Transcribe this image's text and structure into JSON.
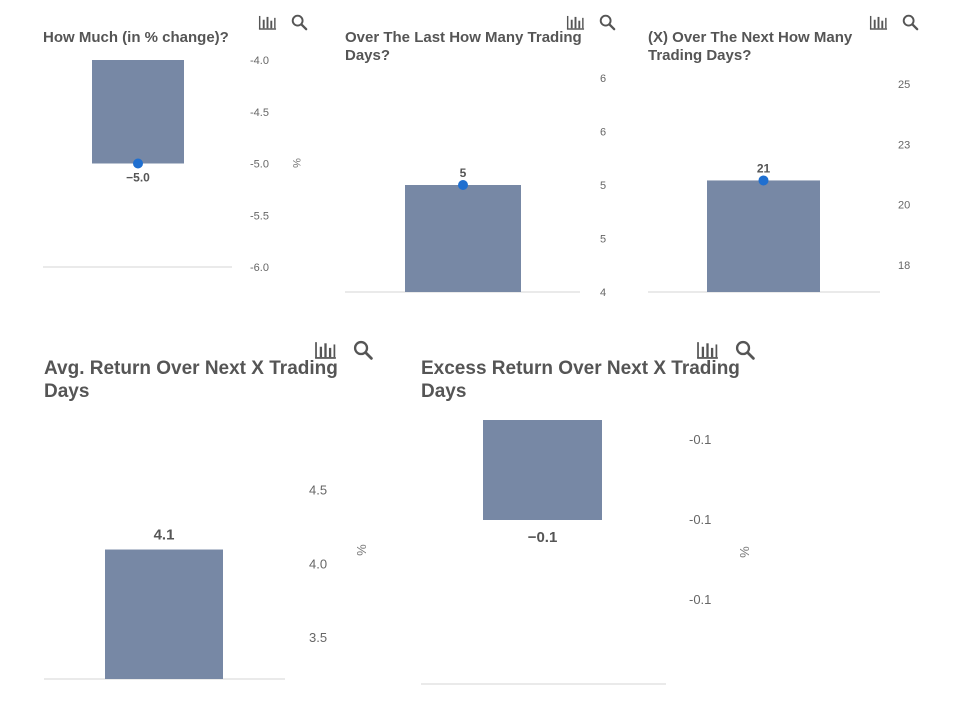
{
  "colors": {
    "bar": "#7788a5",
    "marker": "#1f6fd0",
    "axis": "#dddddd",
    "icon": "#555555"
  },
  "icons": [
    "bar-chart-icon",
    "search-icon"
  ],
  "chart_data": [
    {
      "type": "bar",
      "title": "How Much (in % change)?",
      "categories": [
        ""
      ],
      "values": [
        -5.0
      ],
      "value_label": "−5.0",
      "marker": true,
      "unit": "%",
      "yticks": [
        -4.0,
        -4.5,
        -5.0,
        -5.5,
        -6.0
      ],
      "ytick_labels": [
        "-4.0",
        "-4.5",
        "-5.0",
        "-5.5",
        "-6.0"
      ],
      "ylim": [
        -6.0,
        -4.0
      ],
      "bar_base": -4.0
    },
    {
      "type": "bar",
      "title": "Over The Last How Many Trading Days?",
      "categories": [
        ""
      ],
      "values": [
        5
      ],
      "value_label": "5",
      "marker": true,
      "yticks": [
        6.0,
        5.5,
        5.0,
        4.5,
        4.0
      ],
      "ytick_labels": [
        "6",
        "6",
        "5",
        "5",
        "4"
      ],
      "ylim": [
        4.0,
        6.0
      ]
    },
    {
      "type": "bar",
      "title": "(X) Over The Next How Many Trading Days?",
      "categories": [
        ""
      ],
      "values": [
        21
      ],
      "value_label": "21",
      "marker": true,
      "yticks": [
        25.0,
        22.5,
        20.0,
        17.5
      ],
      "ytick_labels": [
        "25",
        "23",
        "20",
        "18"
      ],
      "ylim": [
        16.0,
        25.0
      ]
    },
    {
      "type": "bar",
      "title": "Avg. Return Over Next X Trading Days",
      "categories": [
        ""
      ],
      "values": [
        4.1
      ],
      "value_label": "4.1",
      "marker": false,
      "unit": "%",
      "yticks": [
        4.5,
        4.0,
        3.5
      ],
      "ytick_labels": [
        "4.5",
        "4.0",
        "3.5"
      ],
      "ylim": [
        3.25,
        4.72
      ]
    },
    {
      "type": "bar",
      "title": "Excess Return Over Next X Trading Days",
      "categories": [
        ""
      ],
      "values": [
        -0.1
      ],
      "value_label": "−0.1",
      "marker": false,
      "unit": "%",
      "yticks": [
        -0.08,
        -0.1,
        -0.12
      ],
      "ytick_labels": [
        "-0.1",
        "-0.1",
        "-0.1"
      ],
      "ylim": [
        -0.135,
        -0.075
      ],
      "bar_base": -0.075
    }
  ]
}
